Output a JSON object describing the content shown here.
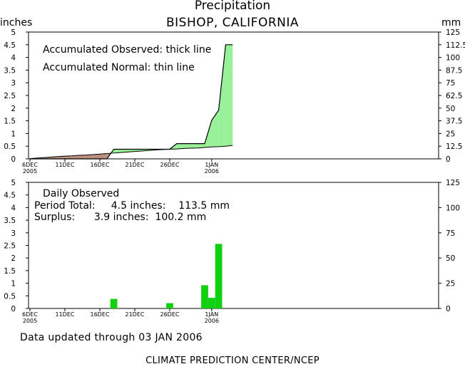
{
  "title": "Precipitation",
  "subtitle": "BISHOP, CALIFORNIA",
  "units": {
    "left": "inches",
    "right": "mm"
  },
  "notes": {
    "accumulated_observed": "Accumulated Observed: thick line",
    "accumulated_normal": "Accumulated Normal: thin line",
    "daily_observed": "Daily Observed",
    "period_total": "Period Total:     4.5 inches:    113.5 mm",
    "surplus": "Surplus:      3.9 inches:  100.2 mm"
  },
  "footer": {
    "updated": "Data updated through 03 JAN 2006",
    "credit": "CLIMATE PREDICTION CENTER/NCEP"
  },
  "colors": {
    "surplus_fill": "#98f098",
    "deficit_fill": "#bc8f80",
    "daily_bar": "#10d010",
    "line": "#000000"
  },
  "chart_data": [
    {
      "type": "area",
      "title": "Precipitation",
      "subtitle": "BISHOP, CALIFORNIA",
      "ylabel_left": "inches",
      "ylabel_right": "mm",
      "ylim": [
        0,
        5
      ],
      "ylim_right": [
        0,
        125
      ],
      "yticks_left": [
        "0",
        "0.5",
        "1",
        "1.5",
        "2",
        "2.5",
        "3",
        "3.5",
        "4",
        "4.5",
        "5"
      ],
      "yticks_right": [
        "0",
        "12.5",
        "25",
        "37.5",
        "50",
        "62.5",
        "75",
        "87.5",
        "100",
        "112.5",
        "125"
      ],
      "xticks": [
        {
          "day": 0,
          "label": "6DEC",
          "sub": "2005"
        },
        {
          "day": 5,
          "label": "11DEC",
          "sub": ""
        },
        {
          "day": 10,
          "label": "16DEC",
          "sub": ""
        },
        {
          "day": 15,
          "label": "21DEC",
          "sub": ""
        },
        {
          "day": 20,
          "label": "26DEC",
          "sub": ""
        },
        {
          "day": 26,
          "label": "1JAN",
          "sub": "2006"
        }
      ],
      "series": [
        {
          "name": "Accumulated Observed",
          "values": [
            0,
            0,
            0,
            0,
            0,
            0,
            0,
            0,
            0,
            0,
            0,
            0,
            0.38,
            0.38,
            0.38,
            0.38,
            0.38,
            0.38,
            0.38,
            0.38,
            0.38,
            0.6,
            0.6,
            0.6,
            0.6,
            0.6,
            1.52,
            1.92,
            4.5,
            4.5
          ]
        },
        {
          "name": "Accumulated Normal",
          "values": [
            0.01,
            0.03,
            0.05,
            0.07,
            0.09,
            0.11,
            0.12,
            0.14,
            0.15,
            0.17,
            0.19,
            0.21,
            0.23,
            0.25,
            0.27,
            0.29,
            0.31,
            0.33,
            0.35,
            0.37,
            0.38,
            0.39,
            0.41,
            0.42,
            0.43,
            0.45,
            0.47,
            0.48,
            0.5,
            0.53
          ]
        }
      ]
    },
    {
      "type": "bar",
      "title": "Daily Observed",
      "ylim": [
        0,
        5
      ],
      "ylim_right": [
        0,
        125
      ],
      "yticks_left": [
        "0",
        "0.5",
        "1",
        "1.5",
        "2",
        "2.5",
        "3",
        "3.5",
        "4",
        "4.5",
        "5"
      ],
      "yticks_right": [
        "0",
        "25",
        "50",
        "75",
        "100",
        "125"
      ],
      "xticks": [
        {
          "day": 0,
          "label": "6DEC",
          "sub": "2005"
        },
        {
          "day": 5,
          "label": "11DEC",
          "sub": ""
        },
        {
          "day": 10,
          "label": "16DEC",
          "sub": ""
        },
        {
          "day": 15,
          "label": "21DEC",
          "sub": ""
        },
        {
          "day": 20,
          "label": "26DEC",
          "sub": ""
        },
        {
          "day": 26,
          "label": "1JAN",
          "sub": "2006"
        }
      ],
      "values": [
        0,
        0,
        0,
        0,
        0,
        0,
        0,
        0,
        0,
        0,
        0,
        0,
        0.38,
        0,
        0,
        0,
        0,
        0,
        0,
        0,
        0.21,
        0,
        0,
        0,
        0,
        0.92,
        0.42,
        2.56,
        0,
        0
      ]
    }
  ]
}
